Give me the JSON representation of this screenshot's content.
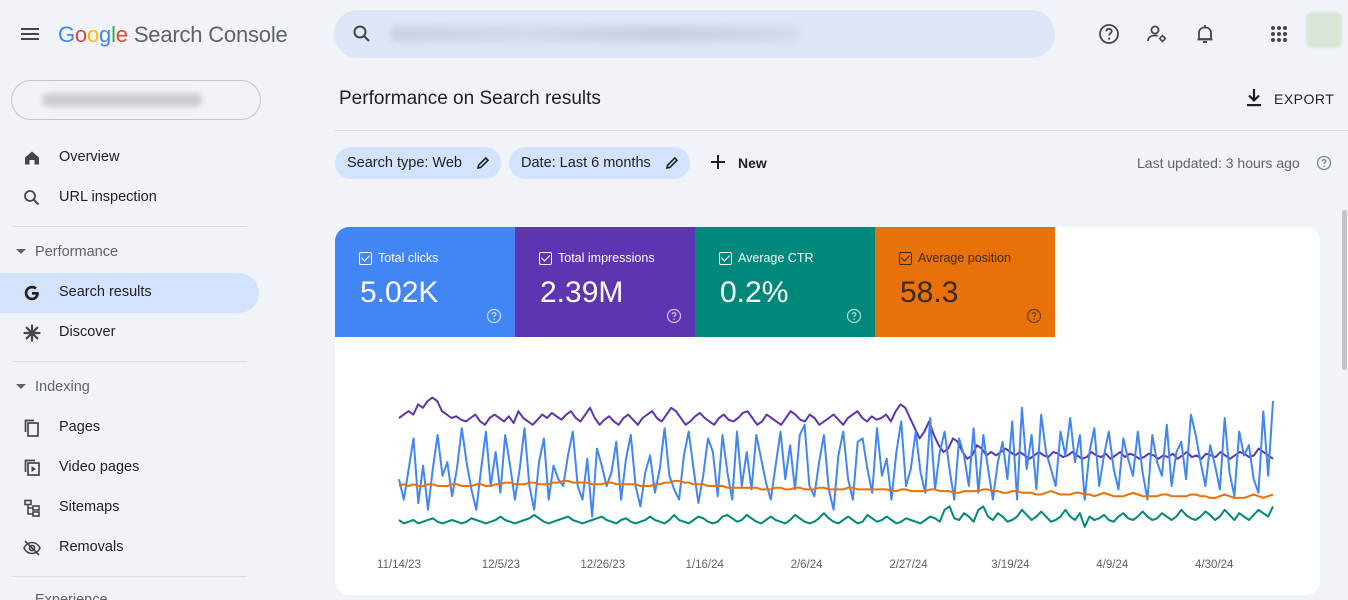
{
  "topbar": {
    "logo": {
      "g1": "G",
      "o1": "o",
      "o2": "o",
      "g2": "g",
      "l": "l",
      "e": "e",
      "product": "Search Console"
    },
    "search": {
      "placeholder": ""
    },
    "icons": [
      "help-icon",
      "manage-users-icon",
      "notifications-icon",
      "apps-icon"
    ]
  },
  "sidebar": {
    "overview": "Overview",
    "url_inspection": "URL inspection",
    "performance_section": "Performance",
    "search_results": "Search results",
    "discover": "Discover",
    "indexing_section": "Indexing",
    "pages": "Pages",
    "video_pages": "Video pages",
    "sitemaps": "Sitemaps",
    "removals": "Removals",
    "cut_section": "Experience"
  },
  "main": {
    "title": "Performance on Search results",
    "export_label": "EXPORT",
    "filters": {
      "search_type": "Search type: Web",
      "date": "Date: Last 6 months",
      "new_label": "New"
    },
    "last_updated": "Last updated: 3 hours ago"
  },
  "metrics": [
    {
      "label": "Total clicks",
      "value": "5.02K",
      "color": "#4285f4",
      "text_color": "#ffffff"
    },
    {
      "label": "Total impressions",
      "value": "2.39M",
      "color": "#5e35b1",
      "text_color": "#ffffff"
    },
    {
      "label": "Average CTR",
      "value": "0.2%",
      "color": "#00897b",
      "text_color": "#ffffff"
    },
    {
      "label": "Average position",
      "value": "58.3",
      "color": "#e8710a",
      "text_color": "#3c2a1a"
    }
  ],
  "chart_data": {
    "type": "line",
    "title": "",
    "xlabel": "",
    "ylabel": "",
    "x_tick_labels": [
      "11/14/23",
      "12/5/23",
      "12/26/23",
      "1/16/24",
      "2/6/24",
      "2/27/24",
      "3/19/24",
      "4/9/24",
      "4/30/24"
    ],
    "days": 182,
    "normalized_ylim": [
      0,
      100
    ],
    "series": [
      {
        "name": "Total impressions",
        "color": "#5e35b1",
        "values": [
          70,
          72,
          74,
          72,
          78,
          76,
          80,
          82,
          80,
          74,
          72,
          70,
          71,
          69,
          68,
          70,
          72,
          68,
          66,
          70,
          72,
          70,
          68,
          71,
          67,
          74,
          70,
          68,
          66,
          69,
          72,
          70,
          73,
          71,
          69,
          72,
          74,
          70,
          68,
          72,
          76,
          70,
          66,
          69,
          71,
          68,
          66,
          70,
          72,
          69,
          66,
          70,
          72,
          74,
          70,
          68,
          72,
          76,
          74,
          70,
          66,
          68,
          71,
          73,
          70,
          68,
          66,
          70,
          72,
          69,
          68,
          70,
          73,
          74,
          70,
          66,
          68,
          72,
          70,
          68,
          66,
          70,
          74,
          72,
          69,
          68,
          72,
          70,
          66,
          68,
          70,
          72,
          69,
          66,
          70,
          72,
          74,
          70,
          68,
          71,
          69,
          70,
          72,
          68,
          74,
          78,
          76,
          70,
          64,
          58,
          62,
          68,
          60,
          54,
          50,
          52,
          58,
          56,
          50,
          46,
          48,
          54,
          52,
          48,
          50,
          48,
          50,
          52,
          50,
          48,
          50,
          48,
          46,
          48,
          50,
          48,
          47,
          50,
          49,
          47,
          48,
          50,
          48,
          46,
          47,
          50,
          48,
          47,
          49,
          46,
          48,
          50,
          47,
          49,
          48,
          46,
          47,
          49,
          48,
          46,
          48,
          47,
          49,
          46,
          48,
          50,
          47,
          48,
          46,
          49,
          48,
          47,
          50,
          48,
          46,
          48,
          50,
          49,
          47,
          48,
          52,
          50,
          48,
          46
        ]
      },
      {
        "name": "Total clicks",
        "color": "#4285f4",
        "values": [
          34,
          22,
          40,
          58,
          20,
          42,
          16,
          40,
          60,
          36,
          44,
          24,
          40,
          64,
          44,
          28,
          16,
          40,
          62,
          30,
          50,
          26,
          60,
          42,
          22,
          40,
          64,
          30,
          16,
          44,
          58,
          22,
          42,
          34,
          30,
          48,
          62,
          30,
          22,
          46,
          12,
          52,
          42,
          30,
          38,
          56,
          22,
          46,
          60,
          30,
          18,
          38,
          48,
          26,
          40,
          64,
          36,
          28,
          22,
          48,
          62,
          40,
          20,
          36,
          58,
          50,
          24,
          60,
          38,
          22,
          62,
          30,
          50,
          28,
          60,
          46,
          32,
          22,
          42,
          62,
          34,
          54,
          28,
          60,
          66,
          30,
          24,
          44,
          60,
          28,
          16,
          48,
          62,
          34,
          22,
          56,
          58,
          40,
          26,
          64,
          36,
          46,
          22,
          50,
          68,
          30,
          40,
          62,
          38,
          26,
          70,
          28,
          50,
          62,
          40,
          22,
          58,
          48,
          30,
          64,
          26,
          60,
          40,
          22,
          44,
          56,
          34,
          68,
          22,
          76,
          40,
          60,
          28,
          72,
          50,
          40,
          30,
          62,
          48,
          70,
          44,
          60,
          22,
          50,
          64,
          30,
          48,
          62,
          40,
          28,
          58,
          46,
          36,
          62,
          38,
          22,
          60,
          44,
          36,
          66,
          30,
          50,
          56,
          34,
          72,
          60,
          44,
          30,
          54,
          42,
          28,
          70,
          38,
          24,
          62,
          48,
          54,
          34,
          26,
          74,
          36,
          80
        ]
      },
      {
        "name": "Average position",
        "color": "#e8710a",
        "values": [
          30,
          31,
          30,
          31,
          30,
          30,
          31,
          31,
          30,
          30,
          30,
          31,
          31,
          30,
          30,
          30,
          31,
          31,
          30,
          30,
          31,
          31,
          32,
          32,
          31,
          31,
          31,
          32,
          32,
          31,
          31,
          31,
          32,
          32,
          33,
          33,
          32,
          32,
          32,
          32,
          31,
          31,
          31,
          32,
          32,
          31,
          31,
          31,
          31,
          31,
          30,
          30,
          30,
          31,
          31,
          32,
          32,
          33,
          33,
          32,
          32,
          31,
          31,
          31,
          30,
          30,
          30,
          30,
          29,
          29,
          29,
          29,
          29,
          29,
          29,
          28,
          28,
          28,
          29,
          29,
          28,
          28,
          29,
          29,
          28,
          28,
          28,
          29,
          29,
          28,
          28,
          28,
          28,
          29,
          29,
          28,
          28,
          28,
          28,
          28,
          28,
          28,
          27,
          27,
          28,
          28,
          27,
          27,
          27,
          27,
          28,
          28,
          27,
          27,
          27,
          26,
          26,
          27,
          27,
          27,
          27,
          28,
          28,
          27,
          27,
          26,
          26,
          27,
          27,
          26,
          26,
          26,
          25,
          25,
          26,
          27,
          26,
          25,
          25,
          25,
          26,
          26,
          25,
          25,
          24,
          25,
          26,
          25,
          24,
          24,
          24,
          25,
          26,
          25,
          24,
          24,
          24,
          24,
          25,
          25,
          24,
          24,
          24,
          24,
          25,
          25,
          24,
          24,
          23,
          23,
          24,
          25,
          24,
          23,
          23,
          23,
          24,
          25,
          24,
          23,
          24,
          25
        ]
      },
      {
        "name": "Average CTR",
        "color": "#00897b",
        "values": [
          10,
          8,
          9,
          10,
          8,
          9,
          10,
          11,
          9,
          8,
          9,
          10,
          9,
          8,
          9,
          11,
          10,
          9,
          8,
          9,
          10,
          12,
          10,
          9,
          8,
          9,
          10,
          11,
          13,
          11,
          9,
          8,
          9,
          10,
          11,
          12,
          10,
          9,
          8,
          9,
          10,
          11,
          12,
          10,
          9,
          8,
          10,
          11,
          9,
          8,
          9,
          10,
          12,
          10,
          9,
          8,
          10,
          13,
          10,
          9,
          8,
          10,
          12,
          11,
          9,
          8,
          9,
          12,
          13,
          11,
          9,
          10,
          13,
          11,
          9,
          8,
          10,
          12,
          10,
          9,
          8,
          10,
          13,
          11,
          9,
          8,
          9,
          11,
          14,
          11,
          9,
          8,
          10,
          12,
          10,
          8,
          9,
          13,
          11,
          9,
          10,
          12,
          10,
          8,
          9,
          11,
          10,
          9,
          8,
          10,
          12,
          11,
          9,
          16,
          18,
          11,
          10,
          14,
          12,
          9,
          16,
          18,
          12,
          10,
          14,
          12,
          9,
          10,
          12,
          16,
          13,
          10,
          12,
          15,
          12,
          9,
          10,
          12,
          16,
          12,
          10,
          14,
          6,
          12,
          10,
          11,
          13,
          10,
          9,
          12,
          14,
          11,
          10,
          12,
          15,
          12,
          10,
          11,
          14,
          12,
          10,
          12,
          16,
          13,
          11,
          10,
          12,
          15,
          13,
          10,
          12,
          16,
          13,
          10,
          14,
          12,
          10,
          13,
          16,
          14,
          12,
          18
        ]
      }
    ]
  }
}
